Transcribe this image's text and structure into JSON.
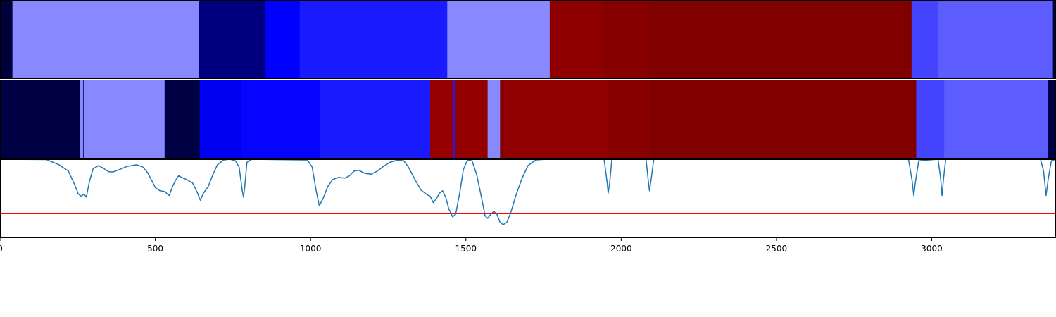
{
  "chart_data": [
    {
      "type": "heatmap",
      "segments": [
        {
          "x0": 0,
          "x1": 40,
          "color": "#00003a"
        },
        {
          "x0": 40,
          "x1": 640,
          "color": "#8888ff"
        },
        {
          "x0": 640,
          "x1": 855,
          "color": "#00007e"
        },
        {
          "x0": 855,
          "x1": 965,
          "color": "#0000ff"
        },
        {
          "x0": 965,
          "x1": 1440,
          "color": "#1a1aff"
        },
        {
          "x0": 1440,
          "x1": 1770,
          "color": "#8888ff"
        },
        {
          "x0": 1770,
          "x1": 1940,
          "color": "#8e0000"
        },
        {
          "x0": 1940,
          "x1": 2090,
          "color": "#860000"
        },
        {
          "x0": 2090,
          "x1": 2935,
          "color": "#800000"
        },
        {
          "x0": 2935,
          "x1": 3020,
          "color": "#4444ff"
        },
        {
          "x0": 3020,
          "x1": 3390,
          "color": "#5c5cff"
        },
        {
          "x0": 3390,
          "x1": 3400,
          "color": "#00003a"
        }
      ]
    },
    {
      "type": "heatmap",
      "segments": [
        {
          "x0": 0,
          "x1": 258,
          "color": "#000044"
        },
        {
          "x0": 258,
          "x1": 268,
          "color": "#8888ff"
        },
        {
          "x0": 268,
          "x1": 272,
          "color": "#000044"
        },
        {
          "x0": 272,
          "x1": 530,
          "color": "#8888ff"
        },
        {
          "x0": 530,
          "x1": 643,
          "color": "#000044"
        },
        {
          "x0": 643,
          "x1": 775,
          "color": "#0000f0"
        },
        {
          "x0": 775,
          "x1": 1030,
          "color": "#0505ff"
        },
        {
          "x0": 1030,
          "x1": 1385,
          "color": "#1a1aff"
        },
        {
          "x0": 1385,
          "x1": 1460,
          "color": "#960000"
        },
        {
          "x0": 1460,
          "x1": 1466,
          "color": "#1a1aff"
        },
        {
          "x0": 1466,
          "x1": 1570,
          "color": "#940000"
        },
        {
          "x0": 1570,
          "x1": 1610,
          "color": "#8888ff"
        },
        {
          "x0": 1610,
          "x1": 1620,
          "color": "#800000"
        },
        {
          "x0": 1620,
          "x1": 1955,
          "color": "#900000"
        },
        {
          "x0": 1955,
          "x1": 2095,
          "color": "#880000"
        },
        {
          "x0": 2095,
          "x1": 2950,
          "color": "#800000"
        },
        {
          "x0": 2950,
          "x1": 3040,
          "color": "#4444ff"
        },
        {
          "x0": 3040,
          "x1": 3375,
          "color": "#5c5cff"
        },
        {
          "x0": 3375,
          "x1": 3400,
          "color": "#000044"
        }
      ]
    },
    {
      "type": "line",
      "xlim": [
        0,
        3400
      ],
      "ylim": [
        0,
        1
      ],
      "x_ticks": [
        0,
        500,
        1000,
        1500,
        2000,
        2500,
        3000
      ],
      "series": [
        {
          "color": "#1f77b4",
          "points": [
            [
              0,
              1.0
            ],
            [
              150,
              0.995
            ],
            [
              190,
              0.93
            ],
            [
              220,
              0.85
            ],
            [
              240,
              0.68
            ],
            [
              252,
              0.56
            ],
            [
              262,
              0.53
            ],
            [
              270,
              0.56
            ],
            [
              278,
              0.52
            ],
            [
              288,
              0.72
            ],
            [
              300,
              0.88
            ],
            [
              318,
              0.92
            ],
            [
              335,
              0.88
            ],
            [
              350,
              0.84
            ],
            [
              365,
              0.84
            ],
            [
              385,
              0.87
            ],
            [
              410,
              0.91
            ],
            [
              440,
              0.93
            ],
            [
              460,
              0.9
            ],
            [
              475,
              0.83
            ],
            [
              490,
              0.72
            ],
            [
              500,
              0.64
            ],
            [
              515,
              0.6
            ],
            [
              530,
              0.59
            ],
            [
              545,
              0.54
            ],
            [
              555,
              0.65
            ],
            [
              565,
              0.73
            ],
            [
              575,
              0.79
            ],
            [
              590,
              0.76
            ],
            [
              602,
              0.74
            ],
            [
              620,
              0.7
            ],
            [
              635,
              0.58
            ],
            [
              645,
              0.48
            ],
            [
              655,
              0.57
            ],
            [
              670,
              0.65
            ],
            [
              685,
              0.8
            ],
            [
              700,
              0.93
            ],
            [
              720,
              0.99
            ],
            [
              740,
              1.0
            ],
            [
              758,
              0.98
            ],
            [
              770,
              0.9
            ],
            [
              780,
              0.6
            ],
            [
              784,
              0.52
            ],
            [
              788,
              0.65
            ],
            [
              795,
              0.96
            ],
            [
              810,
              1.0
            ],
            [
              990,
              0.99
            ],
            [
              1005,
              0.9
            ],
            [
              1018,
              0.6
            ],
            [
              1028,
              0.41
            ],
            [
              1040,
              0.5
            ],
            [
              1055,
              0.65
            ],
            [
              1070,
              0.74
            ],
            [
              1090,
              0.77
            ],
            [
              1110,
              0.76
            ],
            [
              1125,
              0.79
            ],
            [
              1140,
              0.85
            ],
            [
              1155,
              0.86
            ],
            [
              1175,
              0.82
            ],
            [
              1195,
              0.81
            ],
            [
              1215,
              0.85
            ],
            [
              1235,
              0.91
            ],
            [
              1255,
              0.96
            ],
            [
              1280,
              0.99
            ],
            [
              1300,
              0.98
            ],
            [
              1315,
              0.9
            ],
            [
              1335,
              0.75
            ],
            [
              1355,
              0.61
            ],
            [
              1375,
              0.55
            ],
            [
              1385,
              0.53
            ],
            [
              1395,
              0.45
            ],
            [
              1405,
              0.5
            ],
            [
              1415,
              0.57
            ],
            [
              1425,
              0.6
            ],
            [
              1435,
              0.52
            ],
            [
              1445,
              0.37
            ],
            [
              1457,
              0.27
            ],
            [
              1467,
              0.3
            ],
            [
              1480,
              0.57
            ],
            [
              1492,
              0.87
            ],
            [
              1505,
              0.99
            ],
            [
              1520,
              0.98
            ],
            [
              1535,
              0.8
            ],
            [
              1550,
              0.52
            ],
            [
              1562,
              0.28
            ],
            [
              1570,
              0.25
            ],
            [
              1580,
              0.3
            ],
            [
              1590,
              0.34
            ],
            [
              1600,
              0.3
            ],
            [
              1610,
              0.2
            ],
            [
              1620,
              0.17
            ],
            [
              1632,
              0.2
            ],
            [
              1645,
              0.33
            ],
            [
              1660,
              0.53
            ],
            [
              1680,
              0.75
            ],
            [
              1700,
              0.92
            ],
            [
              1725,
              0.99
            ],
            [
              1760,
              1.0
            ],
            [
              1945,
              1.0
            ],
            [
              1955,
              0.7
            ],
            [
              1958,
              0.57
            ],
            [
              1963,
              0.7
            ],
            [
              1970,
              1.0
            ],
            [
              2080,
              1.0
            ],
            [
              2088,
              0.7
            ],
            [
              2091,
              0.6
            ],
            [
              2096,
              0.73
            ],
            [
              2105,
              1.0
            ],
            [
              2925,
              1.0
            ],
            [
              2937,
              0.72
            ],
            [
              2942,
              0.54
            ],
            [
              2947,
              0.7
            ],
            [
              2958,
              0.98
            ],
            [
              3020,
              1.0
            ],
            [
              3028,
              0.78
            ],
            [
              3033,
              0.54
            ],
            [
              3038,
              0.76
            ],
            [
              3045,
              1.0
            ],
            [
              3350,
              1.0
            ],
            [
              3360,
              0.85
            ],
            [
              3368,
              0.54
            ],
            [
              3375,
              0.75
            ],
            [
              3385,
              0.98
            ],
            [
              3400,
              1.0
            ]
          ]
        }
      ],
      "hlines": [
        {
          "y": 0.31,
          "color": "#ff0000"
        }
      ]
    }
  ]
}
